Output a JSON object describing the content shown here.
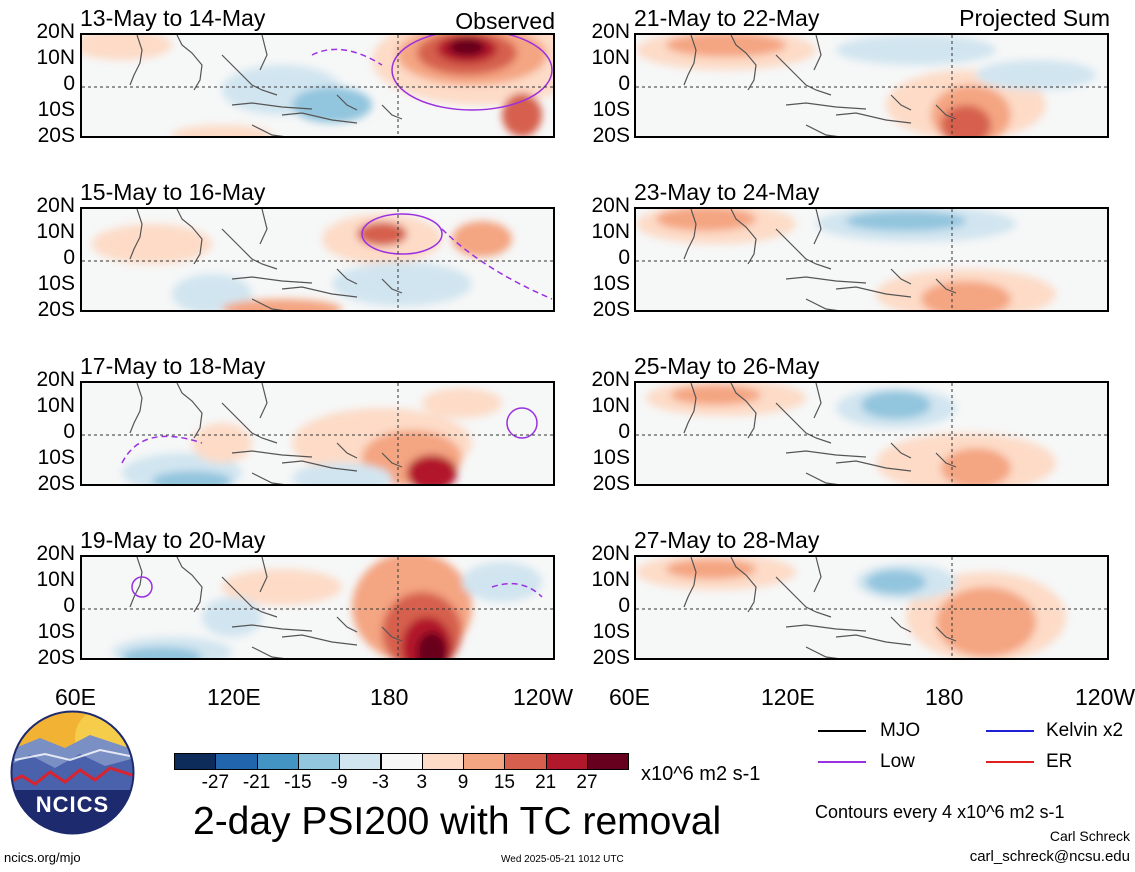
{
  "left_panels": [
    {
      "title": "13-May to 14-May",
      "corner_label": "Observed"
    },
    {
      "title": "15-May to 16-May",
      "corner_label": ""
    },
    {
      "title": "17-May to 18-May",
      "corner_label": ""
    },
    {
      "title": "19-May to 20-May",
      "corner_label": ""
    }
  ],
  "right_panels": [
    {
      "title": "21-May to 22-May",
      "corner_label": "Projected Sum"
    },
    {
      "title": "23-May to 24-May",
      "corner_label": ""
    },
    {
      "title": "25-May to 26-May",
      "corner_label": ""
    },
    {
      "title": "27-May to 28-May",
      "corner_label": ""
    }
  ],
  "lat_labels": [
    "20N",
    "10N",
    "0",
    "10S",
    "20S"
  ],
  "lon_labels": [
    "60E",
    "120E",
    "180",
    "120W"
  ],
  "colorbar": {
    "colors": [
      "#0d2c5a",
      "#2166ac",
      "#4393c3",
      "#92c5de",
      "#d1e5f0",
      "#f7f7f7",
      "#fddbc7",
      "#f4a582",
      "#d6604d",
      "#b2182b",
      "#67001f"
    ],
    "tick_labels": [
      "-27",
      "-21",
      "-15",
      "-9",
      "-3",
      "3",
      "9",
      "15",
      "21",
      "27"
    ],
    "units": "x10^6 m2 s-1"
  },
  "legend": {
    "mjo": {
      "label": "MJO",
      "color": "#000000"
    },
    "kelvin": {
      "label": "Kelvin x2",
      "color": "#1f1fd6"
    },
    "low": {
      "label": "Low",
      "color": "#9b30e0"
    },
    "er": {
      "label": "ER",
      "color": "#e02020"
    }
  },
  "main_title": "2-day PSI200 with TC removal",
  "contour_note": "Contours every 4 x10^6 m2 s-1",
  "author": "Carl Schreck",
  "email": "carl_schreck@ncsu.edu",
  "logo_text": "NCICS",
  "website": "ncics.org/mjo",
  "timestamp": "Wed 2025-05-21 1012 UTC"
}
